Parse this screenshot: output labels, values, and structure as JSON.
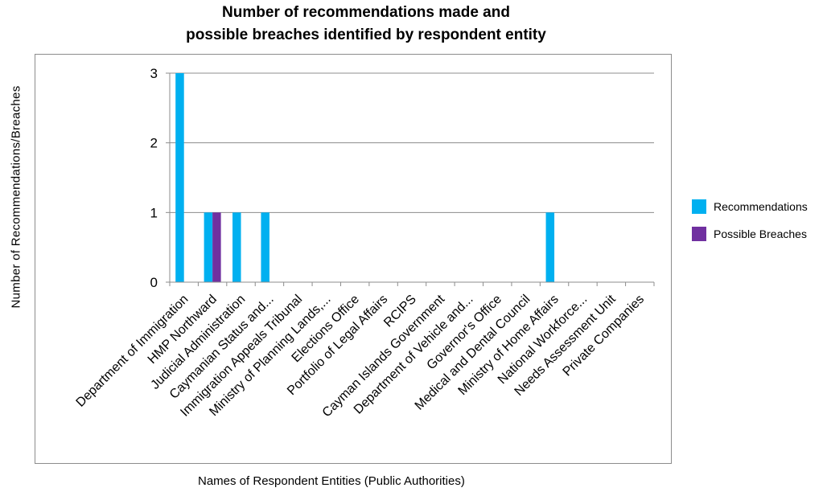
{
  "chart_data": {
    "type": "bar",
    "title_lines": [
      "Number of recommendations made and",
      "possible breaches identified by respondent entity"
    ],
    "xlabel": "Names of Respondent  Entities  (Public Authorities)",
    "ylabel": "Number of Recommendations/Breaches",
    "ylim": [
      0,
      3
    ],
    "yticks": [
      0,
      1,
      2,
      3
    ],
    "grid": true,
    "legend_position": "right",
    "categories": [
      "Department of Immigration",
      "HMP Northward",
      "Judicial Administration",
      "Caymanian Status and...",
      "Immigration Appeals Tribunal",
      "Ministry of Planning Lands,...",
      "Elections Office",
      "Portfolio of Legal Affairs",
      "RCIPS",
      "Cayman Islands Government",
      "Department of Vehicle and...",
      "Governor's Office",
      "Medical and Dental Council",
      "Ministry of Home Affairs",
      "National Workforce...",
      "Needs Assessment Unit",
      "Private Companies"
    ],
    "series": [
      {
        "name": "Recommendations",
        "color": "#00b0f0",
        "values": [
          3,
          1,
          1,
          1,
          0,
          0,
          0,
          0,
          0,
          0,
          0,
          0,
          0,
          1,
          0,
          0,
          0
        ]
      },
      {
        "name": "Possible Breaches",
        "color": "#7030a0",
        "values": [
          0,
          1,
          0,
          0,
          0,
          0,
          0,
          0,
          0,
          0,
          0,
          0,
          0,
          0,
          0,
          0,
          0
        ]
      }
    ]
  }
}
